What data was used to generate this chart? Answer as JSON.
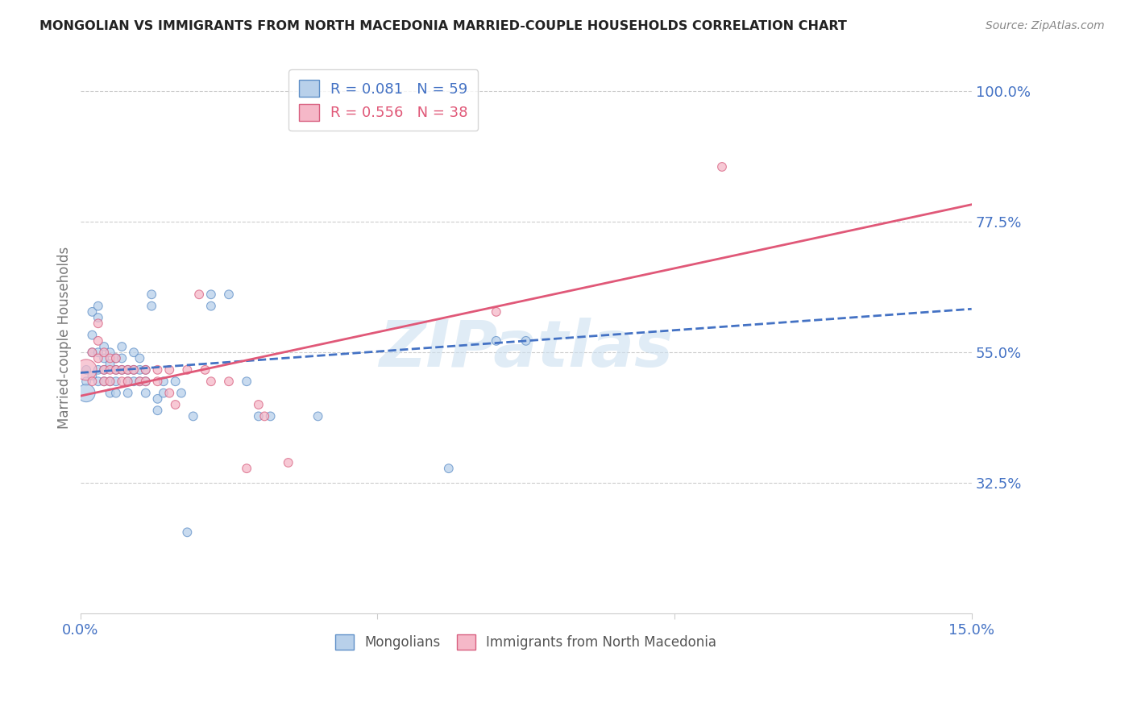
{
  "title": "MONGOLIAN VS IMMIGRANTS FROM NORTH MACEDONIA MARRIED-COUPLE HOUSEHOLDS CORRELATION CHART",
  "source": "Source: ZipAtlas.com",
  "ylabel": "Married-couple Households",
  "xlim": [
    0.0,
    0.15
  ],
  "ylim": [
    0.1,
    1.05
  ],
  "yticks": [
    0.325,
    0.55,
    0.775,
    1.0
  ],
  "ytick_labels": [
    "32.5%",
    "55.0%",
    "77.5%",
    "100.0%"
  ],
  "xticks": [
    0.0,
    0.05,
    0.1,
    0.15
  ],
  "xtick_labels": [
    "0.0%",
    "",
    "",
    "15.0%"
  ],
  "blue_fill_color": "#b8d0ea",
  "pink_fill_color": "#f5b8c8",
  "blue_edge_color": "#6090c8",
  "pink_edge_color": "#d86080",
  "blue_line_color": "#4472c4",
  "pink_line_color": "#e05878",
  "axis_label_color": "#4472c4",
  "R_blue": 0.081,
  "N_blue": 59,
  "R_pink": 0.556,
  "N_pink": 38,
  "watermark": "ZIPatlas",
  "legend_label_blue": "Mongolians",
  "legend_label_pink": "Immigrants from North Macedonia",
  "blue_line_x0": 0.0,
  "blue_line_y0": 0.515,
  "blue_line_x1": 0.15,
  "blue_line_y1": 0.625,
  "pink_line_x0": 0.0,
  "pink_line_y0": 0.475,
  "pink_line_x1": 0.15,
  "pink_line_y1": 0.805,
  "blue_scatter": [
    [
      0.001,
      0.52
    ],
    [
      0.001,
      0.5
    ],
    [
      0.001,
      0.48
    ],
    [
      0.002,
      0.55
    ],
    [
      0.002,
      0.62
    ],
    [
      0.002,
      0.58
    ],
    [
      0.002,
      0.51
    ],
    [
      0.003,
      0.63
    ],
    [
      0.003,
      0.61
    ],
    [
      0.003,
      0.55
    ],
    [
      0.003,
      0.52
    ],
    [
      0.003,
      0.5
    ],
    [
      0.004,
      0.56
    ],
    [
      0.004,
      0.54
    ],
    [
      0.004,
      0.52
    ],
    [
      0.004,
      0.5
    ],
    [
      0.005,
      0.55
    ],
    [
      0.005,
      0.53
    ],
    [
      0.005,
      0.5
    ],
    [
      0.005,
      0.48
    ],
    [
      0.006,
      0.54
    ],
    [
      0.006,
      0.52
    ],
    [
      0.006,
      0.5
    ],
    [
      0.006,
      0.48
    ],
    [
      0.007,
      0.56
    ],
    [
      0.007,
      0.54
    ],
    [
      0.007,
      0.52
    ],
    [
      0.008,
      0.52
    ],
    [
      0.008,
      0.5
    ],
    [
      0.008,
      0.48
    ],
    [
      0.009,
      0.55
    ],
    [
      0.009,
      0.52
    ],
    [
      0.009,
      0.5
    ],
    [
      0.01,
      0.54
    ],
    [
      0.01,
      0.52
    ],
    [
      0.01,
      0.5
    ],
    [
      0.011,
      0.52
    ],
    [
      0.011,
      0.5
    ],
    [
      0.011,
      0.48
    ],
    [
      0.012,
      0.65
    ],
    [
      0.012,
      0.63
    ],
    [
      0.013,
      0.47
    ],
    [
      0.013,
      0.45
    ],
    [
      0.014,
      0.5
    ],
    [
      0.014,
      0.48
    ],
    [
      0.016,
      0.5
    ],
    [
      0.017,
      0.48
    ],
    [
      0.019,
      0.44
    ],
    [
      0.022,
      0.65
    ],
    [
      0.022,
      0.63
    ],
    [
      0.025,
      0.65
    ],
    [
      0.028,
      0.5
    ],
    [
      0.03,
      0.44
    ],
    [
      0.032,
      0.44
    ],
    [
      0.04,
      0.44
    ],
    [
      0.062,
      0.35
    ],
    [
      0.07,
      0.57
    ],
    [
      0.075,
      0.57
    ],
    [
      0.018,
      0.24
    ]
  ],
  "pink_scatter": [
    [
      0.001,
      0.52
    ],
    [
      0.002,
      0.55
    ],
    [
      0.002,
      0.5
    ],
    [
      0.003,
      0.6
    ],
    [
      0.003,
      0.57
    ],
    [
      0.003,
      0.54
    ],
    [
      0.004,
      0.55
    ],
    [
      0.004,
      0.52
    ],
    [
      0.004,
      0.5
    ],
    [
      0.005,
      0.54
    ],
    [
      0.005,
      0.52
    ],
    [
      0.005,
      0.5
    ],
    [
      0.006,
      0.54
    ],
    [
      0.006,
      0.52
    ],
    [
      0.007,
      0.52
    ],
    [
      0.007,
      0.5
    ],
    [
      0.008,
      0.52
    ],
    [
      0.008,
      0.5
    ],
    [
      0.009,
      0.52
    ],
    [
      0.01,
      0.5
    ],
    [
      0.011,
      0.52
    ],
    [
      0.011,
      0.5
    ],
    [
      0.013,
      0.52
    ],
    [
      0.013,
      0.5
    ],
    [
      0.015,
      0.52
    ],
    [
      0.015,
      0.48
    ],
    [
      0.016,
      0.46
    ],
    [
      0.018,
      0.52
    ],
    [
      0.02,
      0.65
    ],
    [
      0.021,
      0.52
    ],
    [
      0.022,
      0.5
    ],
    [
      0.025,
      0.5
    ],
    [
      0.028,
      0.35
    ],
    [
      0.03,
      0.46
    ],
    [
      0.031,
      0.44
    ],
    [
      0.035,
      0.36
    ],
    [
      0.07,
      0.62
    ],
    [
      0.108,
      0.87
    ]
  ],
  "blue_scatter_sizes": [
    60,
    60,
    250,
    60,
    60,
    60,
    60,
    60,
    60,
    60,
    60,
    60,
    60,
    60,
    60,
    60,
    60,
    60,
    60,
    60,
    60,
    60,
    60,
    60,
    60,
    60,
    60,
    60,
    60,
    60,
    60,
    60,
    60,
    60,
    60,
    60,
    60,
    60,
    60,
    60,
    60,
    60,
    60,
    60,
    60,
    60,
    60,
    60,
    60,
    60,
    60,
    60,
    60,
    60,
    60,
    60,
    60,
    60,
    60
  ],
  "pink_scatter_sizes": [
    350,
    60,
    60,
    60,
    60,
    60,
    60,
    60,
    60,
    60,
    60,
    60,
    60,
    60,
    60,
    60,
    60,
    60,
    60,
    60,
    60,
    60,
    60,
    60,
    60,
    60,
    60,
    60,
    60,
    60,
    60,
    60,
    60,
    60,
    60,
    60,
    60,
    60
  ]
}
